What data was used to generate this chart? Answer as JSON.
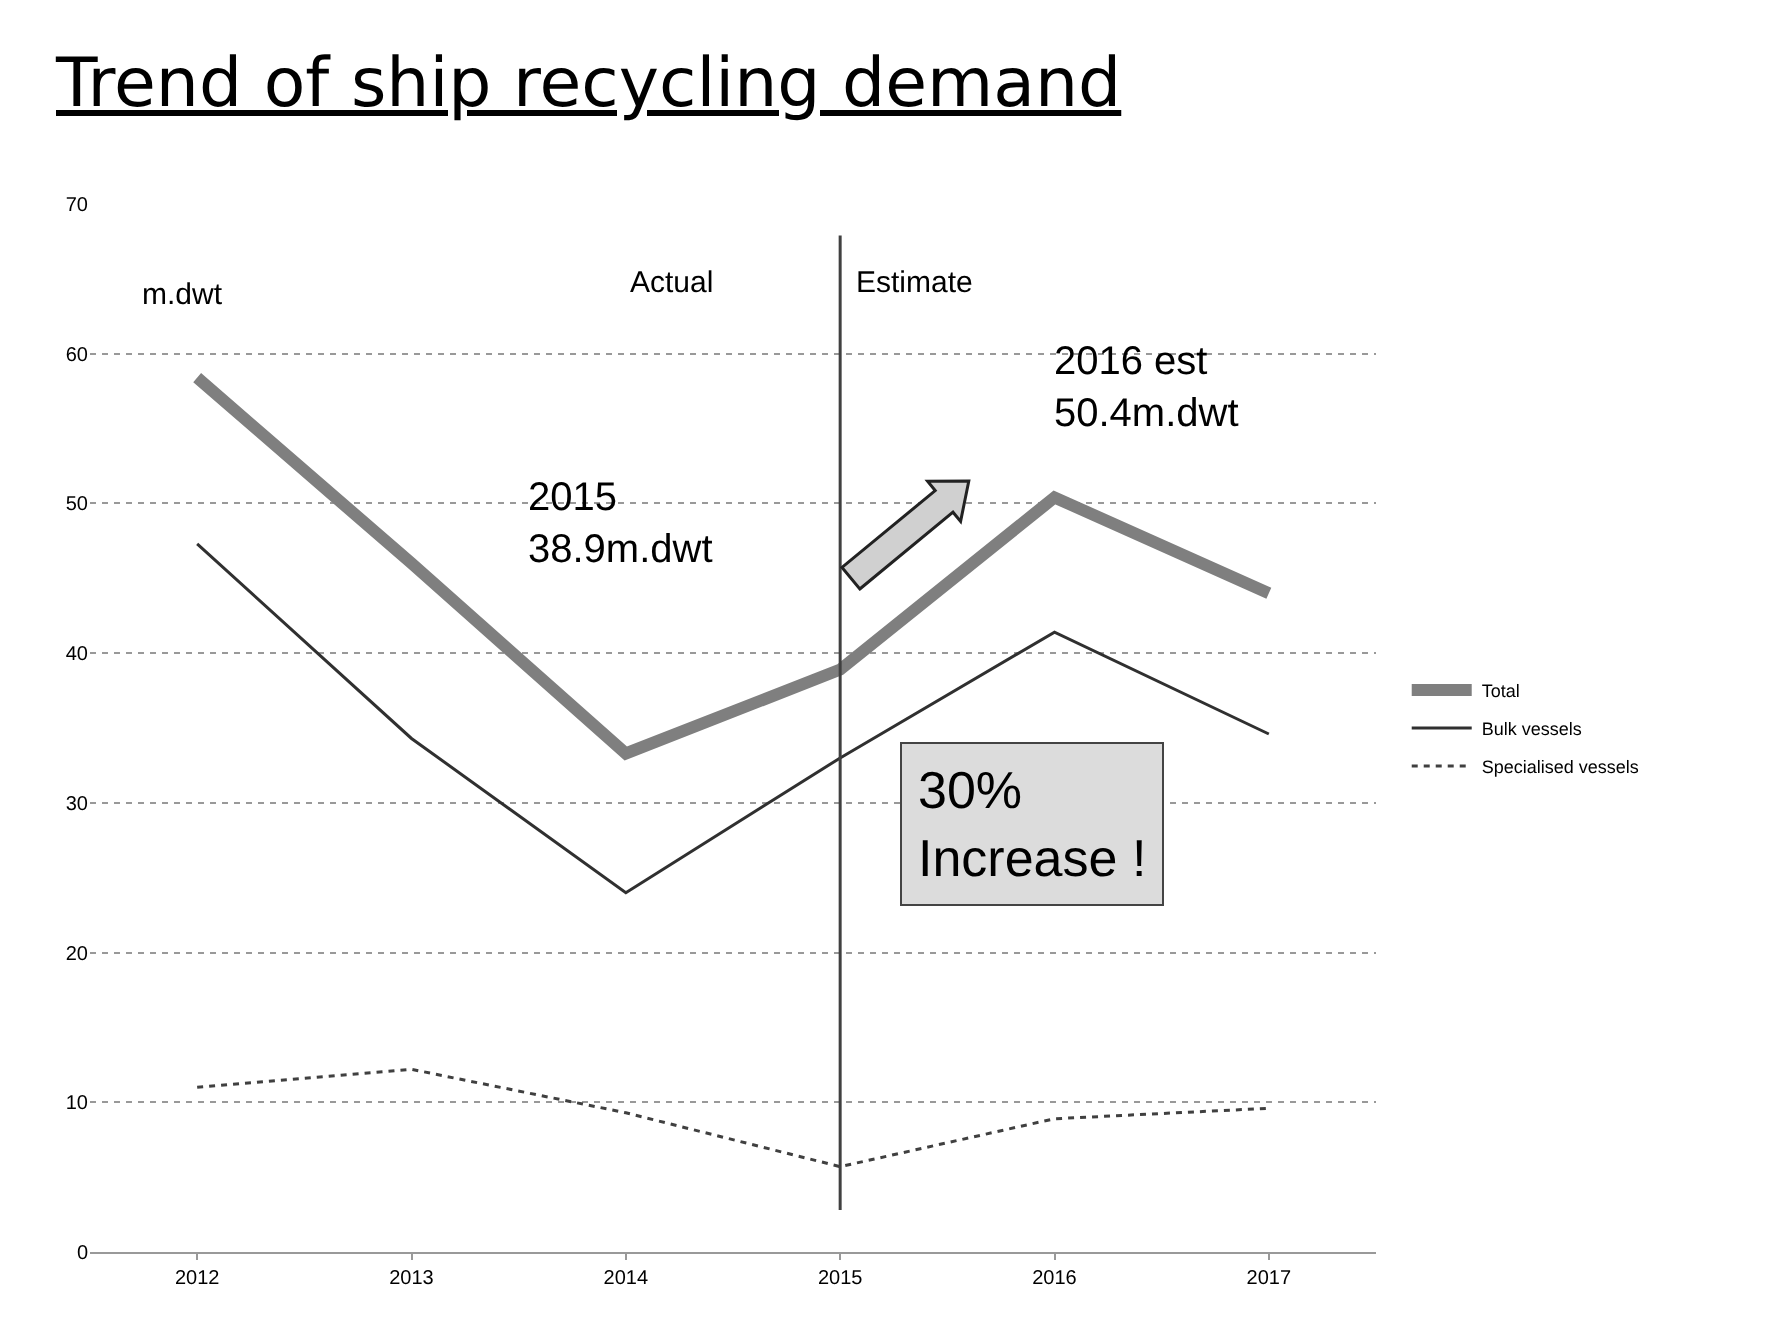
{
  "chart_data": {
    "type": "line",
    "title": "Trend of ship recycling demand",
    "categories": [
      "2012",
      "2013",
      "2014",
      "2015",
      "2016",
      "2017"
    ],
    "series": [
      {
        "name": "Total",
        "color": "#7f7f7f",
        "line_style": "solid",
        "values": [
          58.4,
          46,
          33.3,
          38.9,
          50.4,
          44
        ]
      },
      {
        "name": "Bulk vessels",
        "color": "#303030",
        "line_style": "solid",
        "values": [
          47.3,
          34.3,
          24,
          33,
          41.4,
          34.6
        ]
      },
      {
        "name": "Specialised vessels",
        "color": "#404040",
        "line_style": "dotted",
        "values": [
          11,
          12.2,
          9.3,
          5.7,
          8.9,
          9.6
        ]
      }
    ],
    "ylim": [
      0,
      70
    ],
    "yticks": [
      0,
      10,
      20,
      30,
      40,
      50,
      60,
      70
    ],
    "grid": "y",
    "legend": "right",
    "marker": "none",
    "ref_lines": [
      {
        "axis": "x",
        "value": "2015",
        "color": "#404040",
        "line_style": "solid"
      }
    ],
    "annotations": [
      "m.dwt",
      "Actual",
      "Estimate",
      "2015\n38.9m.dwt",
      "2016 est\n50.4m.dwt",
      "30%\nIncrease !"
    ]
  }
}
